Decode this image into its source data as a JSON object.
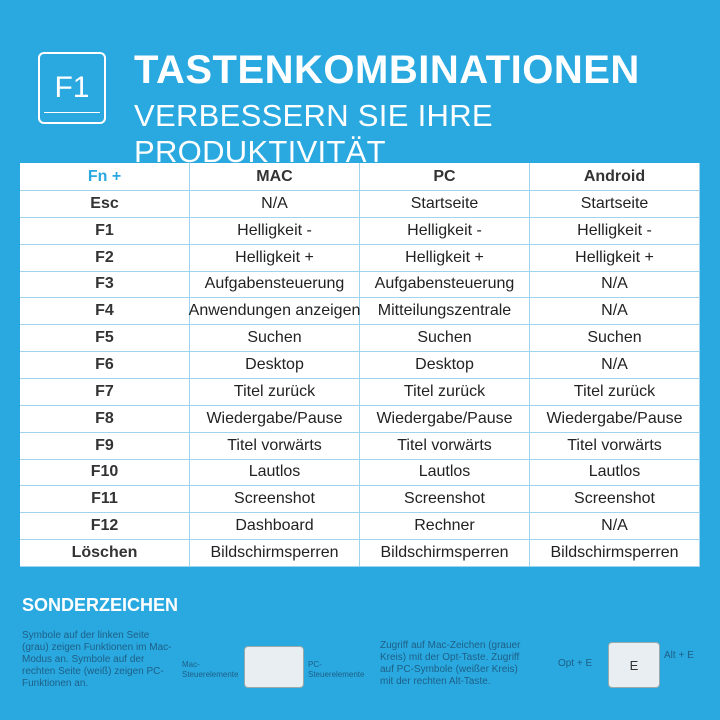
{
  "header": {
    "key": "F1",
    "title": "TASTENKOMBINATIONEN",
    "subtitle": "VERBESSERN SIE IHRE PRODUKTIVITÄT"
  },
  "table": {
    "header": [
      "Fn +",
      "MAC",
      "PC",
      "Android"
    ],
    "rows": [
      [
        "Esc",
        "N/A",
        "Startseite",
        "Startseite"
      ],
      [
        "F1",
        "Helligkeit -",
        "Helligkeit -",
        "Helligkeit -"
      ],
      [
        "F2",
        "Helligkeit +",
        "Helligkeit +",
        "Helligkeit +"
      ],
      [
        "F3",
        "Aufgabensteuerung",
        "Aufgabensteuerung",
        "N/A"
      ],
      [
        "F4",
        "Anwendungen anzeigen",
        "Mitteilungszentrale",
        "N/A"
      ],
      [
        "F5",
        "Suchen",
        "Suchen",
        "Suchen"
      ],
      [
        "F6",
        "Desktop",
        "Desktop",
        "N/A"
      ],
      [
        "F7",
        "Titel zurück",
        "Titel zurück",
        "Titel zurück"
      ],
      [
        "F8",
        "Wiedergabe/Pause",
        "Wiedergabe/Pause",
        "Wiedergabe/Pause"
      ],
      [
        "F9",
        "Titel vorwärts",
        "Titel vorwärts",
        "Titel vorwärts"
      ],
      [
        "F10",
        "Lautlos",
        "Lautlos",
        "Lautlos"
      ],
      [
        "F11",
        "Screenshot",
        "Screenshot",
        "Screenshot"
      ],
      [
        "F12",
        "Dashboard",
        "Rechner",
        "N/A"
      ],
      [
        "Löschen",
        "Bildschirmsperren",
        "Bildschirmsperren",
        "Bildschirmsperren"
      ]
    ]
  },
  "special": {
    "title": "SONDERZEICHEN",
    "left_text": "Symbole auf der linken Seite (grau) zeigen Funktionen im Mac-Modus an. Symbole auf der rechten Seite (weiß) zeigen PC-Funktionen an.",
    "mac_label": "Mac-Steuerelemente",
    "pc_label": "PC-Steuerelemente",
    "right_text": "Zugriff auf Mac-Zeichen (grauer Kreis) mit der Opt-Taste. Zugriff auf PC-Symbole (weißer Kreis) mit der rechten Alt-Taste.",
    "opt_label": "Opt + E",
    "key_letter": "E",
    "alt_label": "Alt + E"
  }
}
